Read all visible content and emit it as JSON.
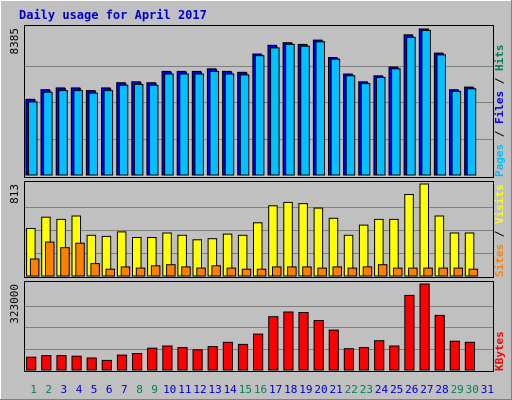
{
  "chart_data": {
    "type": "bar",
    "title": "Daily usage for April 2017",
    "categories": [
      "1",
      "2",
      "3",
      "4",
      "5",
      "6",
      "7",
      "8",
      "9",
      "10",
      "11",
      "12",
      "13",
      "14",
      "15",
      "16",
      "17",
      "18",
      "19",
      "20",
      "21",
      "22",
      "23",
      "24",
      "25",
      "26",
      "27",
      "28",
      "29",
      "30",
      "31"
    ],
    "weekend_days": [
      "1",
      "2",
      "8",
      "9",
      "15",
      "16",
      "22",
      "23",
      "29",
      "30"
    ],
    "panels": [
      {
        "scale_label": "8385",
        "ymax": 8385,
        "series": [
          {
            "name": "Hits",
            "color": "#00805c",
            "values": [
              4300,
              4850,
              4950,
              4950,
              4800,
              4950,
              5250,
              5300,
              5250,
              5900,
              5900,
              5900,
              6050,
              5900,
              5850,
              6900,
              7350,
              7550,
              7450,
              7700,
              6700,
              5750,
              5300,
              5650,
              6150,
              7950,
              8385,
              6950,
              4850,
              5000,
              null
            ]
          },
          {
            "name": "Files",
            "color": "#0000ff",
            "values": [
              4350,
              4900,
              5000,
              5000,
              4850,
              5000,
              5300,
              5350,
              5300,
              5950,
              5950,
              5950,
              6100,
              5950,
              5900,
              6950,
              7450,
              7600,
              7500,
              7750,
              6750,
              5800,
              5350,
              5700,
              6200,
              8050,
              8385,
              7000,
              4900,
              5050,
              null
            ]
          },
          {
            "name": "Pages",
            "color": "#00c0ff",
            "values": [
              4200,
              4750,
              4850,
              4850,
              4700,
              4850,
              5150,
              5200,
              5150,
              5800,
              5800,
              5800,
              5950,
              5800,
              5750,
              6850,
              7300,
              7500,
              7400,
              7650,
              6650,
              5700,
              5250,
              5600,
              6100,
              7900,
              8300,
              6900,
              4800,
              4950,
              null
            ]
          }
        ]
      },
      {
        "scale_label": "813",
        "ymax": 813,
        "series": [
          {
            "name": "Visits",
            "color": "#ffff00",
            "values": [
              420,
              520,
              500,
              530,
              360,
              350,
              390,
              340,
              340,
              380,
              360,
              320,
              330,
              370,
              360,
              470,
              620,
              650,
              640,
              600,
              510,
              360,
              450,
              500,
              500,
              720,
              813,
              530,
              380,
              380,
              null
            ]
          },
          {
            "name": "Sites",
            "color": "#ff8000",
            "values": [
              150,
              300,
              250,
              290,
              110,
              60,
              80,
              70,
              90,
              100,
              80,
              70,
              90,
              70,
              60,
              60,
              80,
              80,
              80,
              70,
              80,
              70,
              80,
              100,
              70,
              70,
              70,
              70,
              70,
              60,
              null
            ]
          }
        ]
      },
      {
        "scale_label": "323000",
        "ymax": 323000,
        "series": [
          {
            "name": "KBytes",
            "color": "#ff0000",
            "values": [
              48000,
              54000,
              54000,
              52000,
              45000,
              36000,
              56000,
              62000,
              82000,
              90000,
              84000,
              76000,
              88000,
              104000,
              96000,
              135000,
              200000,
              218000,
              216000,
              186000,
              150000,
              80000,
              84000,
              110000,
              90000,
              280000,
              323000,
              205000,
              108000,
              104000,
              null
            ]
          }
        ]
      }
    ],
    "legend_separator": "/",
    "colors": {
      "background": "#c0c0c0",
      "panel_border": "#000000",
      "grid": "#808080",
      "title": "#0000cc",
      "weekday_label": "#0000cc",
      "weekend_label": "#00805c"
    }
  }
}
